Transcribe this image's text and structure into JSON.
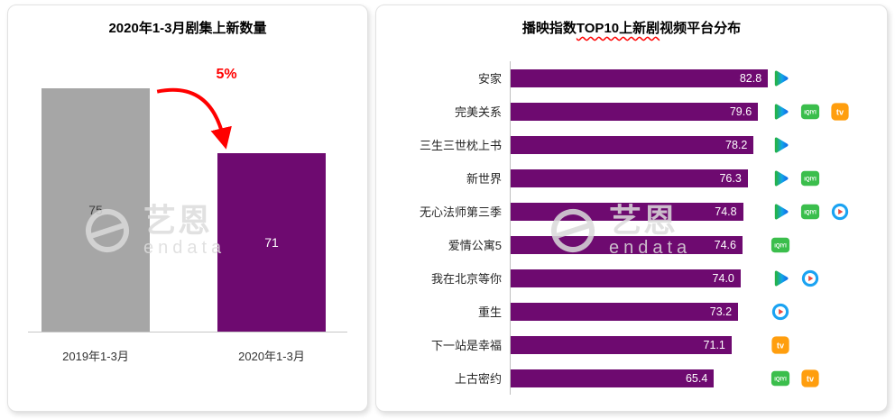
{
  "watermark": {
    "brand": "艺恩",
    "name": "endata"
  },
  "colors": {
    "bar_purple": "#6E0A70",
    "bar_gray": "#A6A6A6",
    "annotation_red": "#FF0000",
    "iqiyi_green": "#3BBE4C",
    "youku_blue": "#1BA3F2",
    "mango_orange": "#FF9E0E",
    "tencent_green": "#24B24B",
    "tencent_blue": "#1273E8"
  },
  "icon_glyphs": {
    "iqiyi": "iQIYI",
    "mango_tv": "tv"
  },
  "chart_data": [
    {
      "type": "bar",
      "title": "2020年1-3月剧集上新数量",
      "categories": [
        "2019年1-3月",
        "2020年1-3月"
      ],
      "values": [
        75,
        71
      ],
      "value_labels": [
        "75",
        "71"
      ],
      "bar_colors": [
        "#A6A6A6",
        "#6E0A70"
      ],
      "annotation": {
        "text": "5%",
        "color": "#FF0000"
      },
      "ylim": [
        60,
        76
      ],
      "grid": false,
      "legend": false
    },
    {
      "type": "bar",
      "orientation": "horizontal",
      "title": "播映指数TOP10上新剧视频平台分布",
      "title_parts": [
        "播映指数",
        "TOP10上新剧",
        "视频平台分布"
      ],
      "categories": [
        "安家",
        "完美关系",
        "三生三世枕上书",
        "新世界",
        "无心法师第三季",
        "爱情公寓5",
        "我在北京等你",
        "重生",
        "下一站是幸福",
        "上古密约"
      ],
      "values": [
        82.8,
        79.6,
        78.2,
        76.3,
        74.8,
        74.6,
        74.0,
        73.2,
        71.1,
        65.4
      ],
      "value_labels": [
        "82.8",
        "79.6",
        "78.2",
        "76.3",
        "74.8",
        "74.6",
        "74.0",
        "73.2",
        "71.1",
        "65.4"
      ],
      "platforms": [
        [
          "tencent-video"
        ],
        [
          "tencent-video",
          "iqiyi",
          "mango-tv"
        ],
        [
          "tencent-video"
        ],
        [
          "tencent-video",
          "iqiyi"
        ],
        [
          "tencent-video",
          "iqiyi",
          "youku"
        ],
        [
          "iqiyi"
        ],
        [
          "tencent-video",
          "youku"
        ],
        [
          "youku"
        ],
        [
          "mango-tv"
        ],
        [
          "iqiyi",
          "mango-tv"
        ]
      ],
      "bar_color": "#6E0A70",
      "xlim": [
        0,
        90
      ],
      "grid": false,
      "legend": false
    }
  ]
}
